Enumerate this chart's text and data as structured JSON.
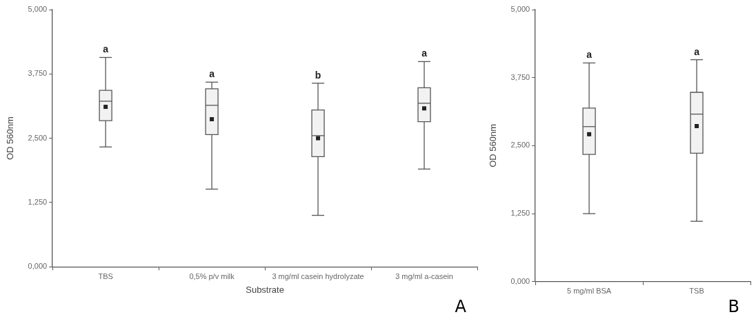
{
  "chart_data": [
    {
      "type": "box",
      "xlabel": "Substrate",
      "ylabel": "OD 560nm",
      "categories": [
        "TBS",
        "0,5% p/v milk",
        "3 mg/ml casein hydrolyzate",
        "3 mg/ml a-casein"
      ],
      "color": "#f2f2f2",
      "boxes": [
        {
          "low": 2.33,
          "q1": 2.84,
          "median": 3.22,
          "q3": 3.43,
          "high": 4.07,
          "mean": 3.11
        },
        {
          "low": 1.51,
          "q1": 2.57,
          "median": 3.14,
          "q3": 3.46,
          "high": 3.59,
          "mean": 2.87
        },
        {
          "low": 1.0,
          "q1": 2.14,
          "median": 2.55,
          "q3": 3.05,
          "high": 3.57,
          "mean": 2.5
        },
        {
          "low": 1.9,
          "q1": 2.82,
          "median": 3.18,
          "q3": 3.48,
          "high": 3.99,
          "mean": 3.08
        }
      ],
      "ylim": [
        0,
        5
      ],
      "yticks": [
        {
          "value": 0,
          "label": "0,000"
        },
        {
          "value": 1.25,
          "label": "1,250"
        },
        {
          "value": 2.5,
          "label": "2,500"
        },
        {
          "value": 3.75,
          "label": "3,750"
        },
        {
          "value": 5,
          "label": "5,000"
        }
      ],
      "annotations": [
        {
          "text": "a",
          "x": "TBS",
          "y": 4.07
        },
        {
          "text": "a",
          "x": "0,5% p/v milk",
          "y": 3.59
        },
        {
          "text": "b",
          "x": "3 mg/ml casein hydrolyzate",
          "y": 3.57
        },
        {
          "text": "a",
          "x": "3 mg/ml a-casein",
          "y": 3.99
        },
        "A"
      ]
    },
    {
      "type": "box",
      "ylabel": "OD 560nm",
      "categories": [
        "5 mg/ml BSA",
        "TSB"
      ],
      "color": "#f2f2f2",
      "boxes": [
        {
          "low": 1.25,
          "q1": 2.34,
          "median": 2.85,
          "q3": 3.19,
          "high": 4.02,
          "mean": 2.71
        },
        {
          "low": 1.11,
          "q1": 2.36,
          "median": 3.08,
          "q3": 3.48,
          "high": 4.08,
          "mean": 2.86
        }
      ],
      "ylim": [
        0,
        5
      ],
      "yticks": [
        {
          "value": 0,
          "label": "0,000"
        },
        {
          "value": 1.25,
          "label": "1,250"
        },
        {
          "value": 2.5,
          "label": "2,500"
        },
        {
          "value": 3.75,
          "label": "3,750"
        },
        {
          "value": 5,
          "label": "5,000"
        }
      ],
      "annotations": [
        {
          "text": "a",
          "x": "5 mg/ml BSA",
          "y": 4.02
        },
        {
          "text": "a",
          "x": "TSB",
          "y": 4.08
        },
        "B"
      ]
    }
  ]
}
